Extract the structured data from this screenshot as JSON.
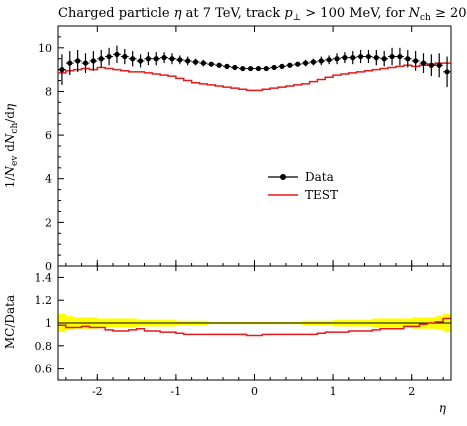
{
  "chart_data": [
    {
      "type": "scatter",
      "title": "Charged particle η at 7 TeV, track p⊥ > 100 MeV, for Nch ≥ 20",
      "ylabel": "1/Nev dNch/dη",
      "xlim": [
        -2.5,
        2.5
      ],
      "ylim": [
        0,
        11
      ],
      "yticks": [
        0,
        2,
        4,
        6,
        8,
        10
      ],
      "grid": false,
      "legend_position": "center-right",
      "series": [
        {
          "name": "Data",
          "kind": "points-with-errors",
          "color": "#000000",
          "x": [
            -2.45,
            -2.35,
            -2.25,
            -2.15,
            -2.05,
            -1.95,
            -1.85,
            -1.75,
            -1.65,
            -1.55,
            -1.45,
            -1.35,
            -1.25,
            -1.15,
            -1.05,
            -0.95,
            -0.85,
            -0.75,
            -0.65,
            -0.55,
            -0.45,
            -0.35,
            -0.25,
            -0.15,
            -0.05,
            0.05,
            0.15,
            0.25,
            0.35,
            0.45,
            0.55,
            0.65,
            0.75,
            0.85,
            0.95,
            1.05,
            1.15,
            1.25,
            1.35,
            1.45,
            1.55,
            1.65,
            1.75,
            1.85,
            1.95,
            2.05,
            2.15,
            2.25,
            2.35,
            2.45
          ],
          "y": [
            9.0,
            9.3,
            9.4,
            9.3,
            9.4,
            9.5,
            9.6,
            9.7,
            9.6,
            9.5,
            9.4,
            9.5,
            9.5,
            9.55,
            9.5,
            9.45,
            9.4,
            9.35,
            9.3,
            9.25,
            9.2,
            9.15,
            9.1,
            9.05,
            9.05,
            9.05,
            9.05,
            9.1,
            9.15,
            9.2,
            9.25,
            9.3,
            9.35,
            9.4,
            9.45,
            9.5,
            9.55,
            9.55,
            9.6,
            9.6,
            9.55,
            9.5,
            9.6,
            9.6,
            9.5,
            9.4,
            9.3,
            9.2,
            9.2,
            8.9
          ],
          "yerr": [
            0.7,
            0.55,
            0.5,
            0.45,
            0.45,
            0.4,
            0.4,
            0.4,
            0.35,
            0.35,
            0.3,
            0.3,
            0.3,
            0.25,
            0.25,
            0.2,
            0.2,
            0.15,
            0.15,
            0.1,
            0.1,
            0.1,
            0.1,
            0.1,
            0.1,
            0.1,
            0.1,
            0.1,
            0.1,
            0.1,
            0.1,
            0.15,
            0.15,
            0.2,
            0.2,
            0.25,
            0.25,
            0.3,
            0.3,
            0.3,
            0.35,
            0.35,
            0.4,
            0.4,
            0.4,
            0.45,
            0.45,
            0.5,
            0.55,
            0.7
          ]
        },
        {
          "name": "TEST",
          "kind": "histogram",
          "color": "#e41a1c",
          "x": [
            -2.45,
            -2.35,
            -2.25,
            -2.15,
            -2.05,
            -1.95,
            -1.85,
            -1.75,
            -1.65,
            -1.55,
            -1.45,
            -1.35,
            -1.25,
            -1.15,
            -1.05,
            -0.95,
            -0.85,
            -0.75,
            -0.65,
            -0.55,
            -0.45,
            -0.35,
            -0.25,
            -0.15,
            -0.05,
            0.05,
            0.15,
            0.25,
            0.35,
            0.45,
            0.55,
            0.65,
            0.75,
            0.85,
            0.95,
            1.05,
            1.15,
            1.25,
            1.35,
            1.45,
            1.55,
            1.65,
            1.75,
            1.85,
            1.95,
            2.05,
            2.15,
            2.25,
            2.35,
            2.45
          ],
          "y": [
            8.85,
            8.95,
            9.0,
            9.05,
            9.0,
            9.1,
            9.05,
            9.0,
            8.95,
            8.9,
            8.9,
            8.85,
            8.8,
            8.75,
            8.7,
            8.6,
            8.5,
            8.4,
            8.35,
            8.3,
            8.25,
            8.2,
            8.15,
            8.1,
            8.05,
            8.05,
            8.1,
            8.15,
            8.2,
            8.25,
            8.3,
            8.35,
            8.45,
            8.55,
            8.65,
            8.75,
            8.8,
            8.85,
            8.9,
            8.95,
            9.0,
            9.05,
            9.1,
            9.15,
            9.2,
            9.15,
            9.2,
            9.25,
            9.3,
            9.3
          ]
        }
      ]
    },
    {
      "type": "line",
      "ylabel": "MC/Data",
      "xlabel": "η",
      "xlim": [
        -2.5,
        2.5
      ],
      "ylim": [
        0.5,
        1.5
      ],
      "yticks": [
        0.6,
        0.8,
        1.0,
        1.2,
        1.4
      ],
      "ytick_labels": [
        "0.6",
        "0.8",
        "1",
        "1.2",
        "1.4"
      ],
      "xticks": [
        -2,
        -1,
        0,
        1,
        2
      ],
      "xtick_labels": [
        "-2",
        "-1",
        "0",
        "1",
        "2"
      ],
      "band_color": "#ffff00",
      "series": [
        {
          "name": "TEST",
          "kind": "ratio-histogram",
          "color": "#e41a1c",
          "x": [
            -2.45,
            -2.35,
            -2.25,
            -2.15,
            -2.05,
            -1.95,
            -1.85,
            -1.75,
            -1.65,
            -1.55,
            -1.45,
            -1.35,
            -1.25,
            -1.15,
            -1.05,
            -0.95,
            -0.85,
            -0.75,
            -0.65,
            -0.55,
            -0.45,
            -0.35,
            -0.25,
            -0.15,
            -0.05,
            0.05,
            0.15,
            0.25,
            0.35,
            0.45,
            0.55,
            0.65,
            0.75,
            0.85,
            0.95,
            1.05,
            1.15,
            1.25,
            1.35,
            1.45,
            1.55,
            1.65,
            1.75,
            1.85,
            1.95,
            2.05,
            2.15,
            2.25,
            2.35,
            2.45
          ],
          "y": [
            0.98,
            0.96,
            0.96,
            0.97,
            0.96,
            0.96,
            0.94,
            0.93,
            0.93,
            0.94,
            0.95,
            0.93,
            0.93,
            0.92,
            0.92,
            0.91,
            0.9,
            0.9,
            0.9,
            0.9,
            0.9,
            0.9,
            0.9,
            0.9,
            0.89,
            0.89,
            0.9,
            0.9,
            0.9,
            0.9,
            0.9,
            0.9,
            0.9,
            0.91,
            0.92,
            0.92,
            0.92,
            0.93,
            0.93,
            0.93,
            0.94,
            0.95,
            0.95,
            0.95,
            0.97,
            0.97,
            0.99,
            1.0,
            1.01,
            1.04
          ]
        }
      ],
      "band_rel_error": [
        0.08,
        0.06,
        0.05,
        0.05,
        0.05,
        0.04,
        0.04,
        0.04,
        0.04,
        0.04,
        0.03,
        0.03,
        0.03,
        0.03,
        0.03,
        0.02,
        0.02,
        0.02,
        0.02,
        0.01,
        0.01,
        0.01,
        0.01,
        0.01,
        0.01,
        0.01,
        0.01,
        0.01,
        0.01,
        0.01,
        0.01,
        0.02,
        0.02,
        0.02,
        0.02,
        0.03,
        0.03,
        0.03,
        0.03,
        0.03,
        0.04,
        0.04,
        0.04,
        0.04,
        0.04,
        0.05,
        0.05,
        0.05,
        0.06,
        0.08
      ]
    }
  ],
  "legend": [
    {
      "label": "Data"
    },
    {
      "label": "TEST"
    }
  ]
}
